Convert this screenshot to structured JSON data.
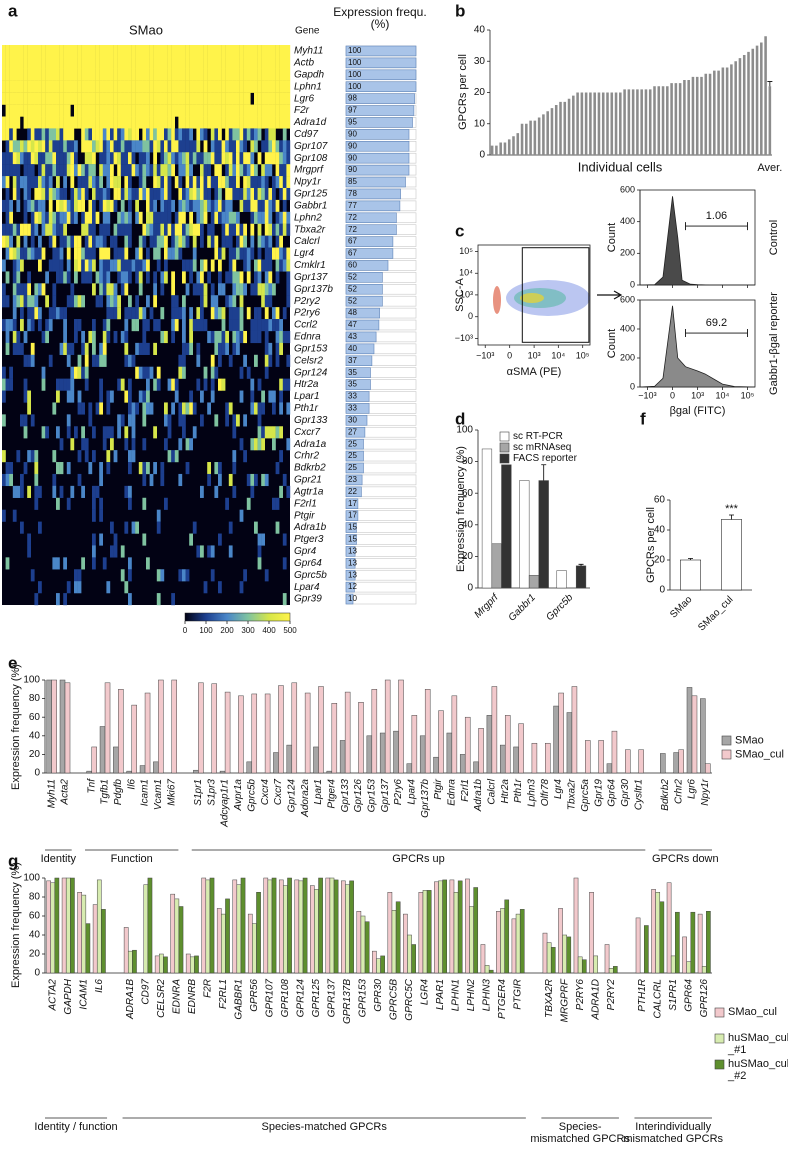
{
  "chart_data": [
    {
      "panel": "a",
      "type": "heatmap",
      "title": "SMao",
      "row_header": "Gene",
      "value_header": "Expression frequ. (%)",
      "rows": [
        "Myh11",
        "Actb",
        "Gapdh",
        "Lphn1",
        "Lgr6",
        "F2r",
        "Adra1d",
        "Cd97",
        "Gpr107",
        "Gpr108",
        "Mrgprf",
        "Npy1r",
        "Gpr125",
        "Gabbr1",
        "Lphn2",
        "Tbxa2r",
        "Calcrl",
        "Lgr4",
        "Cmklr1",
        "Gpr137",
        "Gpr137b",
        "P2ry2",
        "P2ry6",
        "Ccrl2",
        "Ednra",
        "Gpr153",
        "Celsr2",
        "Gpr124",
        "Htr2a",
        "Lpar1",
        "Pth1r",
        "Gpr133",
        "Cxcr7",
        "Adra1a",
        "Crhr2",
        "Bdkrb2",
        "Gpr21",
        "Agtr1a",
        "F2rl1",
        "Ptgir",
        "Adra1b",
        "Ptger3",
        "Gpr4",
        "Gpr64",
        "Gprc5b",
        "Lpar4",
        "Gpr39"
      ],
      "values": [
        100,
        100,
        100,
        100,
        98,
        97,
        95,
        90,
        90,
        90,
        90,
        85,
        78,
        77,
        72,
        72,
        67,
        67,
        60,
        52,
        52,
        52,
        48,
        47,
        43,
        40,
        37,
        35,
        35,
        33,
        33,
        30,
        27,
        25,
        25,
        25,
        23,
        22,
        17,
        17,
        15,
        15,
        13,
        13,
        13,
        12,
        10
      ],
      "xlim": [
        0,
        100
      ],
      "bar_color": "#a9c4e8",
      "colorbar_ticks": [
        0,
        100,
        200,
        300,
        400,
        500
      ],
      "colors": [
        "#020214",
        "#1d3f8f",
        "#4a86c8",
        "#7fc3a0",
        "#d6e64a",
        "#fff34a"
      ]
    },
    {
      "panel": "b",
      "type": "bar",
      "ylabel": "GPCRs per cell",
      "xlabel": "Individual cells",
      "categories": [
        null,
        null,
        null,
        null,
        null,
        null,
        null,
        null,
        null,
        null,
        null,
        null,
        null,
        null,
        null,
        null,
        null,
        null,
        null,
        null,
        null,
        null,
        null,
        null,
        null,
        null,
        null,
        null,
        null,
        null,
        null,
        null,
        null,
        null,
        null,
        null,
        null,
        null,
        null,
        null,
        null,
        null,
        null,
        null,
        null,
        null,
        null,
        null,
        null,
        null,
        null,
        null,
        null,
        null,
        null,
        null,
        null,
        null,
        null,
        null,
        null,
        null,
        null,
        null,
        null,
        "Aver."
      ],
      "values": [
        3,
        3,
        4,
        4,
        5,
        6,
        7,
        10,
        10,
        11,
        11,
        12,
        13,
        14,
        15,
        16,
        17,
        17,
        18,
        19,
        20,
        20,
        20,
        20,
        20,
        20,
        20,
        20,
        20,
        20,
        20,
        21,
        21,
        21,
        21,
        21,
        21,
        21,
        22,
        22,
        22,
        22,
        23,
        23,
        23,
        24,
        24,
        25,
        25,
        25,
        26,
        26,
        27,
        27,
        28,
        28,
        29,
        30,
        31,
        32,
        33,
        34,
        35,
        36,
        38,
        22
      ],
      "errors": [
        null,
        null,
        null,
        null,
        null,
        null,
        null,
        null,
        null,
        null,
        null,
        null,
        null,
        null,
        null,
        null,
        null,
        null,
        null,
        null,
        null,
        null,
        null,
        null,
        null,
        null,
        null,
        null,
        null,
        null,
        null,
        null,
        null,
        null,
        null,
        null,
        null,
        null,
        null,
        null,
        null,
        null,
        null,
        null,
        null,
        null,
        null,
        null,
        null,
        null,
        null,
        null,
        null,
        null,
        null,
        null,
        null,
        null,
        null,
        null,
        null,
        null,
        null,
        null,
        null,
        1.5
      ],
      "color": "#8c8c8c",
      "ylim": [
        0,
        40
      ],
      "yticks": [
        0,
        10,
        20,
        30,
        40
      ]
    },
    {
      "panel": "c",
      "type": "flow",
      "scatter": {
        "xlabel": "αSMA (PE)",
        "ylabel": "SSC-A",
        "xlim": [
          -2000,
          200000
        ],
        "ylim": [
          -2000,
          200000
        ],
        "xticks": [
          {
            "value": -1000,
            "label": "−10³"
          },
          0,
          {
            "value": 1000,
            "label": "10³"
          },
          {
            "value": 10000,
            "label": "10⁴"
          },
          {
            "value": 100000,
            "label": "10⁵"
          }
        ],
        "yticks": [
          {
            "value": -1000,
            "label": "−10³"
          },
          0,
          {
            "value": 1000,
            "label": "10³"
          },
          {
            "value": 10000,
            "label": "10⁴"
          },
          {
            "value": 100000,
            "label": "10⁵"
          }
        ],
        "gate": {
          "x": [
            300,
            180000
          ],
          "y": [
            -1500,
            150000
          ]
        }
      },
      "hist_xlabel": "βgal (FITC)",
      "hist_ylabel": "Count",
      "hist_xlim": [
        -2000,
        200000
      ],
      "hist_ylim": [
        0,
        600
      ],
      "hist_yticks": [
        0,
        200,
        400,
        600
      ],
      "hist_xticks": [
        {
          "value": -1000,
          "label": "−10³"
        },
        0,
        {
          "value": 1000,
          "label": "10³"
        },
        {
          "value": 10000,
          "label": "10⁴"
        },
        {
          "value": 100000,
          "label": "10⁵"
        }
      ],
      "histograms": [
        {
          "name": "Control",
          "color": "#4a4a4a",
          "x": [
            -2000,
            -500,
            -200,
            0,
            100,
            200,
            500,
            1000,
            3000,
            10000,
            200000
          ],
          "values": [
            0,
            2,
            50,
            560,
            300,
            30,
            5,
            2,
            0,
            0,
            0
          ],
          "gate": [
            300,
            100000
          ],
          "gate_value": 1.06
        },
        {
          "name": "Gabbr1-βgal reporter",
          "color": "#8a8a8a",
          "x": [
            -2000,
            -500,
            -200,
            0,
            100,
            300,
            1000,
            2000,
            5000,
            10000,
            30000,
            200000
          ],
          "values": [
            0,
            5,
            60,
            560,
            200,
            140,
            110,
            90,
            50,
            20,
            3,
            0
          ],
          "gate": [
            300,
            100000
          ],
          "gate_value": 69.2
        }
      ]
    },
    {
      "panel": "d",
      "type": "bar",
      "ylabel": "Expression frequency (%)",
      "categories": [
        "Mrgprf",
        "Gabbr1",
        "Gprc5b"
      ],
      "series": [
        {
          "name": "sc RT-PCR",
          "color": "#ffffff",
          "values": [
            88,
            68,
            11
          ]
        },
        {
          "name": "sc mRNAseq",
          "color": "#a6a6a6",
          "values": [
            28,
            8,
            0
          ]
        },
        {
          "name": "FACS reporter",
          "color": "#333333",
          "values": [
            78,
            68,
            14
          ],
          "errors": [
            null,
            10,
            1
          ]
        }
      ],
      "ylim": [
        0,
        100
      ],
      "yticks": [
        0,
        20,
        40,
        60,
        80,
        100
      ]
    },
    {
      "panel": "f",
      "type": "bar",
      "ylabel": "GPCRs per cell",
      "categories": [
        "SMao",
        "SMao_cul"
      ],
      "values": [
        20,
        47
      ],
      "errors": [
        1,
        3
      ],
      "annotation": "***",
      "color": "#ffffff",
      "ylim": [
        0,
        60
      ],
      "yticks": [
        0,
        20,
        40,
        60
      ]
    },
    {
      "panel": "e",
      "type": "bar",
      "ylabel": "Expression frequency (%)",
      "groups": [
        {
          "label": "Identity",
          "categories": [
            "Myh11",
            "Acta2"
          ]
        },
        {
          "label": "Function",
          "categories": [
            "Tnf",
            "Tgfb1",
            "Pdgfb",
            "Il6",
            "Icam1",
            "Vcam1",
            "Mki67"
          ]
        },
        {
          "label": "GPCRs up",
          "categories": [
            "S1pr1",
            "S1pr3",
            "Adcyap1r1",
            "Avpr1a",
            "Gprc5b",
            "Cxcr4",
            "Cxcr7",
            "Gpr124",
            "Adora2a",
            "Lpar1",
            "Ptger4",
            "Gpr133",
            "Gpr126",
            "Gpr153",
            "Gpr137",
            "P2ry6",
            "Lpar4",
            "Gpr137b",
            "Ptgir",
            "Ednra",
            "F2rl1",
            "Adra1b",
            "Calcrl",
            "Htr2a",
            "Pth1r",
            "Lphn3",
            "Olfr78",
            "Lgr4",
            "Tbxa2r",
            "Gprc5a",
            "Gpr19",
            "Gpr64",
            "Gpr30",
            "Cysltr1"
          ]
        },
        {
          "label": "GPCRs down",
          "categories": [
            "Bdkrb2",
            "Crhr2",
            "Lgr6",
            "Npy1r"
          ]
        }
      ],
      "series": [
        {
          "name": "SMao",
          "color": "#a6a6a6",
          "values": [
            100,
            100,
            2,
            50,
            28,
            2,
            8,
            12,
            0,
            3,
            0,
            2,
            0,
            12,
            0,
            22,
            30,
            0,
            28,
            2,
            35,
            0,
            40,
            43,
            45,
            10,
            40,
            17,
            43,
            20,
            12,
            62,
            30,
            28,
            0,
            0,
            72,
            65,
            0,
            0,
            10,
            0,
            0,
            21,
            22,
            92,
            80
          ]
        },
        {
          "name": "SMao_cul",
          "color": "#f2c9cc",
          "values": [
            100,
            97,
            28,
            97,
            90,
            73,
            86,
            100,
            100,
            97,
            96,
            87,
            83,
            85,
            85,
            94,
            97,
            86,
            93,
            75,
            87,
            76,
            90,
            100,
            100,
            62,
            90,
            67,
            83,
            60,
            48,
            93,
            62,
            53,
            32,
            32,
            86,
            93,
            35,
            35,
            45,
            25,
            25,
            0,
            25,
            83,
            10
          ]
        }
      ],
      "ylim": [
        0,
        100
      ],
      "yticks": [
        0,
        20,
        40,
        60,
        80,
        100
      ]
    },
    {
      "panel": "g",
      "type": "bar",
      "ylabel": "Expression frequency (%)",
      "groups": [
        {
          "label": "Identity / function",
          "categories": [
            "ACTA2",
            "GAPDH",
            "ICAM1",
            "IL6"
          ]
        },
        {
          "label": "Species-matched GPCRs",
          "categories": [
            "ADRA1B",
            "CD97",
            "CELSR2",
            "EDNRA",
            "EDNRB",
            "F2R",
            "F2RL1",
            "GABBR1",
            "GPR56",
            "GPR107",
            "GPR108",
            "GPR124",
            "GPR125",
            "GPR137",
            "GPR137B",
            "GPR153",
            "GPR30",
            "GPRC5B",
            "GPRC5C",
            "LGR4",
            "LPAR1",
            "LPHN1",
            "LPHN2",
            "LPHN3",
            "PTGER4",
            "PTGIR"
          ]
        },
        {
          "label": "Species-mismatched GPCRs",
          "categories": [
            "TBXA2R",
            "MRGPRF",
            "P2RY6",
            "ADRA1D",
            "P2RY2"
          ]
        },
        {
          "label": "Interindividually mismatched GPCRs",
          "categories": [
            "PTH1R",
            "CALCRL",
            "S1PR1",
            "GPR64",
            "GPR126"
          ]
        }
      ],
      "series": [
        {
          "name": "SMao_cul",
          "color": "#f2c9cc",
          "values": [
            97,
            100,
            85,
            72,
            48,
            0,
            18,
            83,
            20,
            100,
            68,
            98,
            62,
            100,
            98,
            98,
            92,
            100,
            97,
            65,
            23,
            85,
            62,
            85,
            96,
            98,
            99,
            30,
            65,
            57,
            42,
            68,
            100,
            85,
            30,
            58,
            88,
            95,
            38,
            62
          ]
        },
        {
          "name": "huSMao_cul_#1",
          "color": "#d7ecb0",
          "values": [
            95,
            100,
            82,
            98,
            23,
            93,
            20,
            78,
            17,
            98,
            62,
            93,
            52,
            98,
            92,
            97,
            88,
            100,
            93,
            60,
            15,
            66,
            40,
            87,
            97,
            85,
            70,
            8,
            68,
            62,
            32,
            40,
            17,
            18,
            5,
            0,
            85,
            18,
            12,
            7
          ]
        },
        {
          "name": "huSMao_cul_#2",
          "color": "#5e8f2e",
          "values": [
            100,
            100,
            52,
            67,
            24,
            100,
            17,
            70,
            18,
            100,
            78,
            100,
            85,
            100,
            100,
            100,
            100,
            98,
            97,
            54,
            18,
            75,
            30,
            87,
            98,
            97,
            90,
            3,
            77,
            67,
            27,
            38,
            14,
            0,
            7,
            50,
            75,
            64,
            64,
            65
          ]
        }
      ],
      "ylim": [
        0,
        100
      ],
      "yticks": [
        0,
        20,
        40,
        60,
        80,
        100
      ]
    }
  ]
}
